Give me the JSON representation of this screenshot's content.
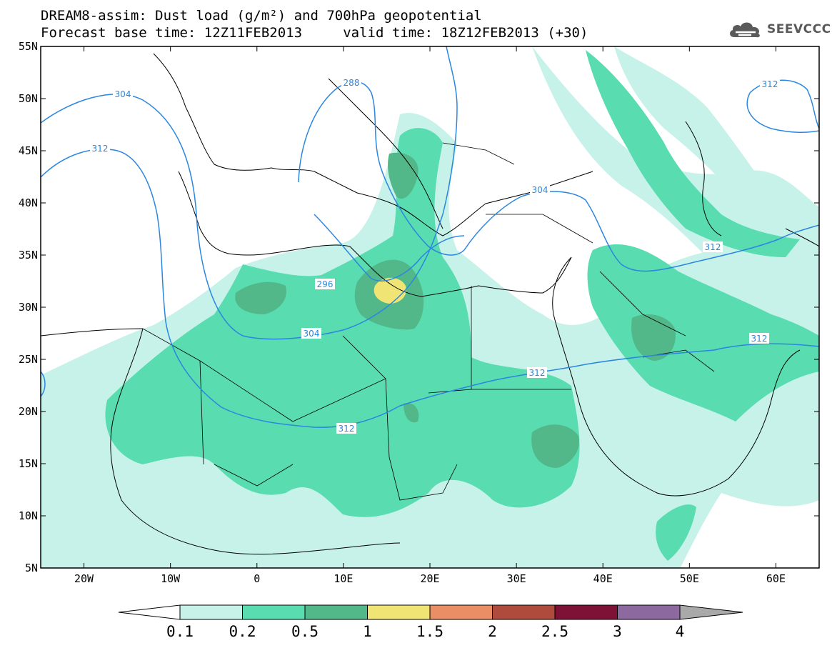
{
  "title": {
    "line1": "DREAM8-assim: Dust load (g/m²) and 700hPa geopotential",
    "line2": "Forecast base time: 12Z11FEB2013     valid time: 18Z12FEB2013 (+30)"
  },
  "logo": {
    "icon": "cloud-logo-icon",
    "text": "SEEVCCC"
  },
  "map": {
    "lon_range": [
      -25,
      65
    ],
    "lat_range": [
      5,
      55
    ],
    "lat_ticks": [
      "55N",
      "50N",
      "45N",
      "40N",
      "35N",
      "30N",
      "25N",
      "20N",
      "15N",
      "10N",
      "5N"
    ],
    "lon_ticks": [
      "20W",
      "10W",
      "0",
      "10E",
      "20E",
      "30E",
      "40E",
      "50E",
      "60E"
    ],
    "contour_color": "#2b86e0",
    "contour_labels": [
      "304",
      "312",
      "288",
      "312",
      "296",
      "304",
      "304",
      "312",
      "312",
      "312",
      "312"
    ]
  },
  "colorbar": {
    "labels": [
      "0.1",
      "0.2",
      "0.5",
      "1",
      "1.5",
      "2",
      "2.5",
      "3",
      "4"
    ],
    "colors": [
      "#c7f2ea",
      "#58dcb0",
      "#52b88a",
      "#f0e474",
      "#ea8e66",
      "#ae4b3d",
      "#7e1236",
      "#8c6aa0"
    ],
    "under_color": "#ffffff",
    "over_color": "#a9a9a9"
  }
}
